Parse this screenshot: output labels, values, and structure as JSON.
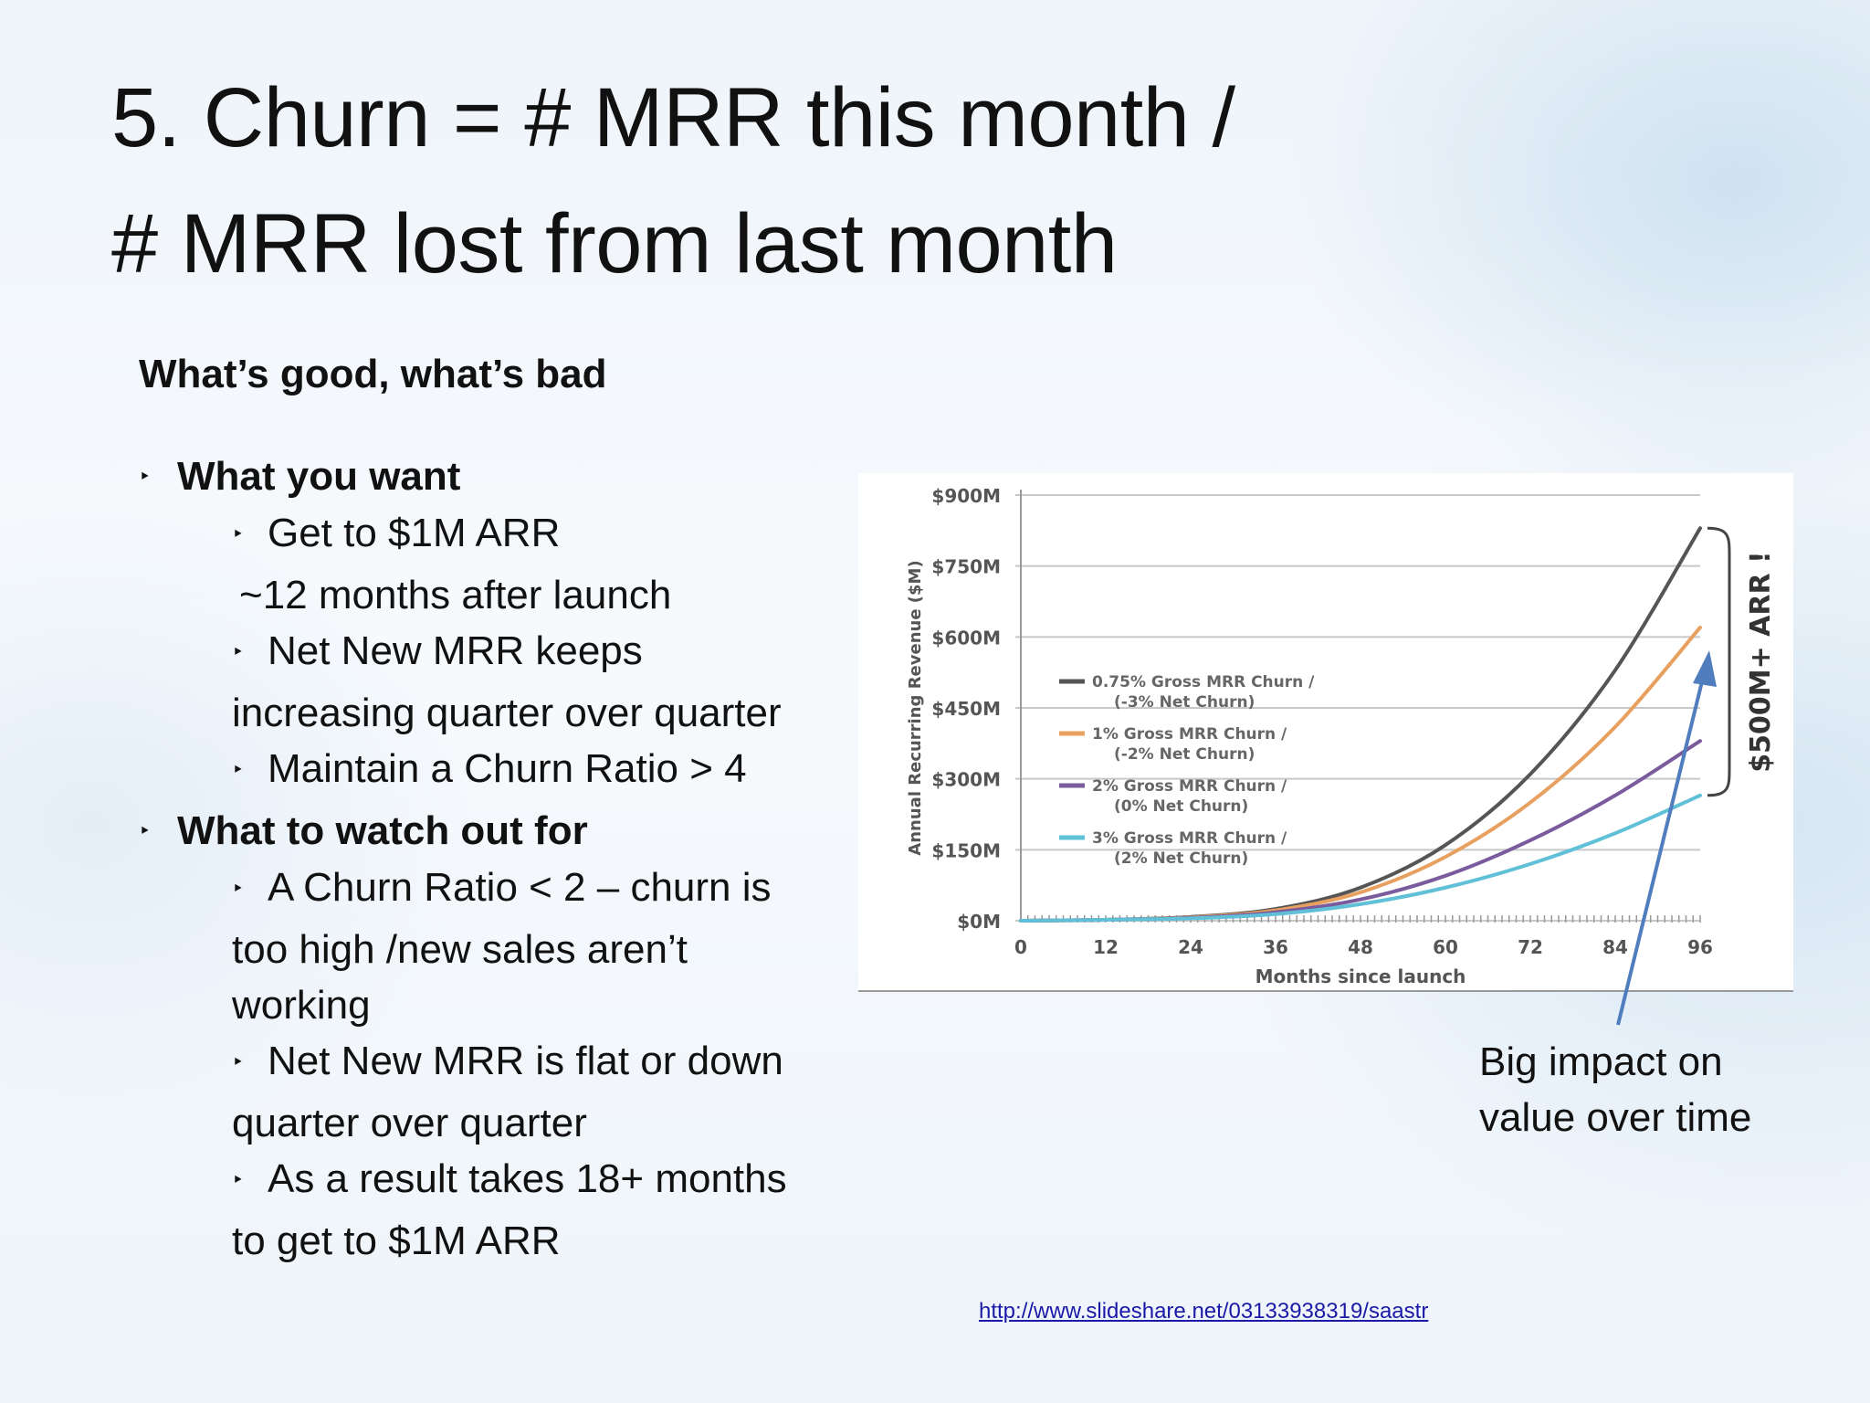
{
  "slide": {
    "title_line1": "5. Churn = # MRR this month /",
    "title_line2": "# MRR lost from last month",
    "section_heading": "What’s good, what’s bad",
    "bullet_marker": "‣",
    "want_heading": "What you want",
    "want_items": [
      "Get to $1M ARR",
      "~12 months after launch",
      "Net New MRR keeps",
      "increasing quarter over quarter",
      "Maintain a Churn Ratio > 4"
    ],
    "watch_heading": "What to watch out for",
    "watch_items": [
      "A Churn Ratio < 2 – churn is",
      "too high /new sales aren’t",
      "working",
      "Net New MRR is flat or down",
      "quarter over quarter",
      "As a result takes 18+ months",
      "to get to $1M ARR"
    ],
    "callout": "Big impact on value over time",
    "source_url": "http://www.slideshare.net/03133938319/saastr"
  },
  "chart_data": {
    "type": "line",
    "xlabel": "Months since launch",
    "ylabel": "Annual Recurring Revenue ($M)",
    "x_ticks": [
      "0",
      "12",
      "24",
      "36",
      "48",
      "60",
      "72",
      "84",
      "96"
    ],
    "y_ticks": [
      "$0M",
      "$150M",
      "$300M",
      "$450M",
      "$600M",
      "$750M",
      "$900M"
    ],
    "xlim": [
      0,
      96
    ],
    "ylim": [
      0,
      900
    ],
    "grid": true,
    "legend_position": "left-center",
    "x": [
      0,
      12,
      24,
      36,
      48,
      60,
      72,
      84,
      96
    ],
    "series": [
      {
        "name": "0.75% Gross MRR Churn / (-3% Net Churn)",
        "color": "#555555",
        "values": [
          0,
          2,
          8,
          25,
          70,
          160,
          310,
          530,
          830
        ]
      },
      {
        "name": "1% Gross MRR Churn / (-2% Net Churn)",
        "color": "#e8a060",
        "values": [
          0,
          2,
          7,
          22,
          60,
          135,
          250,
          410,
          620
        ]
      },
      {
        "name": "2% Gross MRR Churn / (0% Net Churn)",
        "color": "#7a5c9e",
        "values": [
          0,
          2,
          6,
          18,
          45,
          95,
          170,
          265,
          380
        ]
      },
      {
        "name": "3% Gross MRR Churn / (2% Net Churn)",
        "color": "#5fc0d8",
        "values": [
          0,
          2,
          5,
          14,
          35,
          70,
          120,
          185,
          265
        ]
      }
    ],
    "annotation": "$500M+ ARR !"
  }
}
